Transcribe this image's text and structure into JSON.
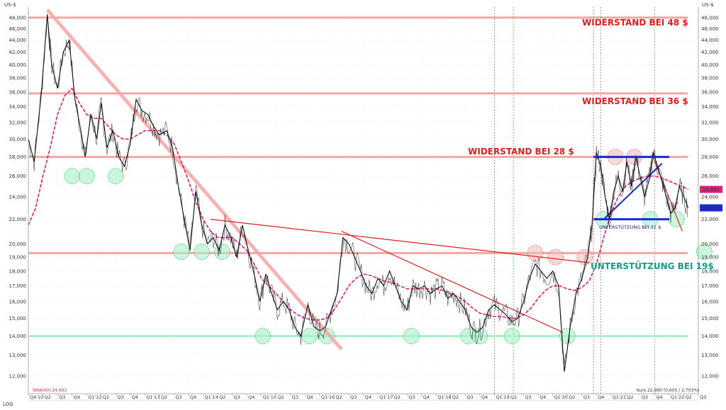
{
  "chart_data": {
    "type": "line",
    "scale": "log",
    "currency_label": "US-$",
    "log_label": "LOG",
    "ylim": [
      11200,
      50000
    ],
    "y_ticks": [
      12000,
      13000,
      14000,
      15000,
      16000,
      17000,
      18000,
      19000,
      20000,
      22000,
      24000,
      26000,
      28000,
      30000,
      32000,
      34000,
      36000,
      38000,
      40000,
      42000,
      44000,
      46000,
      48000
    ],
    "y_tick_labels": [
      "12,000",
      "13,000",
      "14,000",
      "15,000",
      "16,000",
      "17,000",
      "18,000",
      "19,000",
      "20,000",
      "22,000",
      "24,000",
      "26,000",
      "28,000",
      "30,000",
      "32,000",
      "34,000",
      "36,000",
      "38,000",
      "40,000",
      "42,000",
      "44,000",
      "46,000",
      "48,000"
    ],
    "x_tick_labels": [
      "Q4'10",
      "Q2",
      "Q3",
      "Q4",
      "Q1'12",
      "Q2",
      "Q3",
      "Q4",
      "Q1'13",
      "Q2",
      "Q3",
      "Q4",
      "Q1'14",
      "Q2",
      "Q3",
      "Q4",
      "Q1'15",
      "Q2",
      "Q3",
      "Q4",
      "Q1'16",
      "Q2",
      "Q3",
      "Q4",
      "Q1'17",
      "Q2",
      "Q3",
      "Q4",
      "Q1'18",
      "Q2",
      "Q3",
      "Q4",
      "Q1'19",
      "Q2",
      "Q3",
      "Q4",
      "Q1'20",
      "Q2",
      "Q3",
      "Q4",
      "Q1'21",
      "Q2",
      "Q3",
      "Q4",
      "Q1'22",
      "Q2",
      "Q3"
    ],
    "x_range": [
      0,
      46
    ],
    "price_series": {
      "name": "Kurs",
      "points": [
        [
          0,
          30000
        ],
        [
          0.4,
          27500
        ],
        [
          0.9,
          36000
        ],
        [
          1.3,
          48500
        ],
        [
          1.6,
          40000
        ],
        [
          2.0,
          36500
        ],
        [
          2.4,
          42000
        ],
        [
          2.8,
          44000
        ],
        [
          3.2,
          35000
        ],
        [
          3.6,
          31000
        ],
        [
          3.9,
          28000
        ],
        [
          4.3,
          33000
        ],
        [
          4.7,
          30000
        ],
        [
          5.0,
          34500
        ],
        [
          5.4,
          29000
        ],
        [
          5.8,
          31000
        ],
        [
          6.2,
          28000
        ],
        [
          6.6,
          27000
        ],
        [
          7.0,
          29500
        ],
        [
          7.4,
          35000
        ],
        [
          7.8,
          33500
        ],
        [
          8.2,
          33000
        ],
        [
          8.6,
          31500
        ],
        [
          9.0,
          30500
        ],
        [
          9.5,
          31000
        ],
        [
          9.9,
          29000
        ],
        [
          10.3,
          25000
        ],
        [
          10.7,
          22000
        ],
        [
          11.1,
          19500
        ],
        [
          11.5,
          24500
        ],
        [
          11.9,
          21500
        ],
        [
          12.3,
          20000
        ],
        [
          12.7,
          20500
        ],
        [
          13.1,
          19500
        ],
        [
          13.5,
          21500
        ],
        [
          13.9,
          20500
        ],
        [
          14.3,
          19000
        ],
        [
          14.7,
          21500
        ],
        [
          15.1,
          19500
        ],
        [
          15.5,
          17800
        ],
        [
          15.9,
          16000
        ],
        [
          16.3,
          17800
        ],
        [
          16.7,
          16500
        ],
        [
          17.1,
          15500
        ],
        [
          17.5,
          16000
        ],
        [
          17.9,
          15500
        ],
        [
          18.3,
          14500
        ],
        [
          18.7,
          14000
        ],
        [
          19.2,
          15800
        ],
        [
          19.6,
          14500
        ],
        [
          20.0,
          14300
        ],
        [
          20.4,
          14500
        ],
        [
          20.8,
          15500
        ],
        [
          21.2,
          16500
        ],
        [
          21.6,
          20500
        ],
        [
          22.0,
          20000
        ],
        [
          22.4,
          19000
        ],
        [
          22.8,
          18000
        ],
        [
          23.2,
          17000
        ],
        [
          23.6,
          16500
        ],
        [
          24.0,
          17500
        ],
        [
          24.4,
          17000
        ],
        [
          24.8,
          18000
        ],
        [
          25.2,
          17000
        ],
        [
          25.6,
          16000
        ],
        [
          26.0,
          15500
        ],
        [
          26.4,
          17000
        ],
        [
          26.8,
          16800
        ],
        [
          27.2,
          17000
        ],
        [
          27.6,
          16500
        ],
        [
          28.0,
          16800
        ],
        [
          28.4,
          17000
        ],
        [
          28.8,
          16200
        ],
        [
          29.2,
          16500
        ],
        [
          29.6,
          16000
        ],
        [
          30.0,
          15500
        ],
        [
          30.4,
          14500
        ],
        [
          30.8,
          14200
        ],
        [
          31.2,
          14500
        ],
        [
          31.6,
          15500
        ],
        [
          32.0,
          15800
        ],
        [
          32.4,
          15500
        ],
        [
          32.8,
          15200
        ],
        [
          33.2,
          14800
        ],
        [
          33.6,
          15000
        ],
        [
          34.0,
          16000
        ],
        [
          34.4,
          17500
        ],
        [
          34.8,
          18500
        ],
        [
          35.2,
          18000
        ],
        [
          35.6,
          17500
        ],
        [
          36.0,
          18000
        ],
        [
          36.4,
          17000
        ],
        [
          36.8,
          12200
        ],
        [
          37.2,
          14500
        ],
        [
          37.6,
          16500
        ],
        [
          38.0,
          17500
        ],
        [
          38.4,
          19000
        ],
        [
          38.7,
          21500
        ],
        [
          39.0,
          28500
        ],
        [
          39.3,
          27000
        ],
        [
          39.6,
          24000
        ],
        [
          39.9,
          22000
        ],
        [
          40.2,
          24500
        ],
        [
          40.5,
          26000
        ],
        [
          40.8,
          24500
        ],
        [
          41.1,
          27500
        ],
        [
          41.4,
          25000
        ],
        [
          41.7,
          28000
        ],
        [
          42.0,
          26000
        ],
        [
          42.3,
          24000
        ],
        [
          42.6,
          25500
        ],
        [
          42.9,
          28500
        ],
        [
          43.2,
          27000
        ],
        [
          43.5,
          25500
        ],
        [
          43.8,
          24000
        ],
        [
          44.1,
          22500
        ],
        [
          44.4,
          23000
        ],
        [
          44.7,
          25000
        ],
        [
          45.0,
          24000
        ],
        [
          45.3,
          22990
        ]
      ]
    },
    "sma_series": {
      "name": "SMA(40)",
      "points": [
        [
          0,
          21500
        ],
        [
          0.5,
          23000
        ],
        [
          1.0,
          26000
        ],
        [
          1.5,
          29000
        ],
        [
          2.0,
          33000
        ],
        [
          2.5,
          35500
        ],
        [
          3.0,
          36500
        ],
        [
          3.5,
          34500
        ],
        [
          4.0,
          33000
        ],
        [
          4.5,
          32500
        ],
        [
          5.0,
          32500
        ],
        [
          5.5,
          31500
        ],
        [
          6.0,
          30500
        ],
        [
          6.5,
          30000
        ],
        [
          7.0,
          30000
        ],
        [
          7.5,
          30500
        ],
        [
          8.0,
          31000
        ],
        [
          8.5,
          31000
        ],
        [
          9.0,
          31000
        ],
        [
          9.5,
          30500
        ],
        [
          10.0,
          29500
        ],
        [
          10.5,
          27500
        ],
        [
          11.0,
          25500
        ],
        [
          11.5,
          23500
        ],
        [
          12.0,
          22000
        ],
        [
          12.5,
          21000
        ],
        [
          13.0,
          20500
        ],
        [
          13.5,
          20500
        ],
        [
          14.0,
          20500
        ],
        [
          14.5,
          20000
        ],
        [
          15.0,
          19500
        ],
        [
          15.5,
          18500
        ],
        [
          16.0,
          17500
        ],
        [
          16.5,
          17000
        ],
        [
          17.0,
          16500
        ],
        [
          17.5,
          16000
        ],
        [
          18.0,
          15500
        ],
        [
          18.5,
          15200
        ],
        [
          19.0,
          15000
        ],
        [
          19.5,
          14900
        ],
        [
          20.0,
          14900
        ],
        [
          20.5,
          15000
        ],
        [
          21.0,
          15500
        ],
        [
          21.5,
          16200
        ],
        [
          22.0,
          17000
        ],
        [
          22.5,
          17500
        ],
        [
          23.0,
          17800
        ],
        [
          23.5,
          17700
        ],
        [
          24.0,
          17500
        ],
        [
          24.5,
          17300
        ],
        [
          25.0,
          17200
        ],
        [
          25.5,
          17000
        ],
        [
          26.0,
          16800
        ],
        [
          26.5,
          16800
        ],
        [
          27.0,
          16800
        ],
        [
          27.5,
          16800
        ],
        [
          28.0,
          16800
        ],
        [
          28.5,
          16700
        ],
        [
          29.0,
          16500
        ],
        [
          29.5,
          16300
        ],
        [
          30.0,
          16000
        ],
        [
          30.5,
          15600
        ],
        [
          31.0,
          15300
        ],
        [
          31.5,
          15200
        ],
        [
          32.0,
          15100
        ],
        [
          32.5,
          15100
        ],
        [
          33.0,
          15000
        ],
        [
          33.5,
          15000
        ],
        [
          34.0,
          15200
        ],
        [
          34.5,
          15600
        ],
        [
          35.0,
          16200
        ],
        [
          35.5,
          16700
        ],
        [
          36.0,
          17000
        ],
        [
          36.5,
          17000
        ],
        [
          37.0,
          16800
        ],
        [
          37.5,
          16700
        ],
        [
          38.0,
          16900
        ],
        [
          38.5,
          17300
        ],
        [
          39.0,
          18500
        ],
        [
          39.5,
          20500
        ],
        [
          40.0,
          22500
        ],
        [
          40.5,
          24000
        ],
        [
          41.0,
          25000
        ],
        [
          41.5,
          25500
        ],
        [
          42.0,
          25800
        ],
        [
          42.5,
          26000
        ],
        [
          43.0,
          26000
        ],
        [
          43.5,
          25800
        ],
        [
          44.0,
          25500
        ],
        [
          44.5,
          25200
        ],
        [
          45.0,
          24900
        ],
        [
          45.3,
          24692
        ]
      ]
    },
    "horizontal_levels": [
      {
        "value": 48000,
        "color": "#f4a6a6"
      },
      {
        "value": 35800,
        "color": "#f4a6a6"
      },
      {
        "value": 28000,
        "color": "#f4a6a6"
      },
      {
        "value": 19300,
        "color": "#f4a6a6"
      },
      {
        "value": 14000,
        "color": "#a8f0c8"
      }
    ],
    "trend_lines": [
      {
        "from": [
          1.3,
          49500
        ],
        "to": [
          21.5,
          13300
        ],
        "color": "#f4a6a6",
        "role": "thick"
      },
      {
        "from": [
          12.5,
          22000
        ],
        "to": [
          38.5,
          18600
        ],
        "color": "#e02020",
        "role": "thin"
      },
      {
        "from": [
          21.5,
          21000
        ],
        "to": [
          36.7,
          14200
        ],
        "color": "#e02020",
        "role": "thin"
      },
      {
        "from": [
          39.5,
          22000
        ],
        "to": [
          43.5,
          27300
        ],
        "color": "#1a2ad8",
        "role": "blue"
      },
      {
        "from": [
          42.8,
          28300
        ],
        "to": [
          44.9,
          21000
        ],
        "color": "#e02020",
        "role": "thin"
      }
    ],
    "channel_lines": [
      {
        "from": [
          38.8,
          28000
        ],
        "to": [
          44.0,
          28000
        ],
        "color": "#1a2ad8"
      },
      {
        "from": [
          38.8,
          22000
        ],
        "to": [
          44.0,
          22000
        ],
        "color": "#1a2ad8"
      }
    ],
    "vertical_markers": [
      {
        "x": 32.0,
        "color": "#e05050"
      },
      {
        "x": 33.3,
        "color": "#40c040"
      },
      {
        "x": 38.8,
        "color": "#e05050"
      },
      {
        "x": 39.3,
        "color": "#e05050"
      },
      {
        "x": 43.0,
        "color": "#40c040"
      }
    ],
    "support_circles": [
      {
        "x": 3.0,
        "y": 26000
      },
      {
        "x": 4.0,
        "y": 26000
      },
      {
        "x": 6.0,
        "y": 26000
      },
      {
        "x": 10.5,
        "y": 19400
      },
      {
        "x": 11.9,
        "y": 19400
      },
      {
        "x": 13.3,
        "y": 19400
      },
      {
        "x": 16.1,
        "y": 14000
      },
      {
        "x": 19.3,
        "y": 14000
      },
      {
        "x": 20.5,
        "y": 14000
      },
      {
        "x": 26.3,
        "y": 14000
      },
      {
        "x": 30.2,
        "y": 14000
      },
      {
        "x": 31.0,
        "y": 14000
      },
      {
        "x": 33.2,
        "y": 14000
      },
      {
        "x": 37.0,
        "y": 14000
      },
      {
        "x": 39.5,
        "y": 22000
      },
      {
        "x": 42.7,
        "y": 22000
      },
      {
        "x": 44.5,
        "y": 22000
      },
      {
        "x": 46.4,
        "y": 19400
      }
    ],
    "resistance_circles": [
      {
        "x": 34.8,
        "y": 19300
      },
      {
        "x": 36.2,
        "y": 19000
      },
      {
        "x": 38.2,
        "y": 19000
      },
      {
        "x": 40.3,
        "y": 28000
      },
      {
        "x": 41.6,
        "y": 28000
      }
    ],
    "annotations": [
      {
        "text": "WIDERSTAND BEI 48 $",
        "color": "#e02020"
      },
      {
        "text": "WIDERSTAND BEI 36 $",
        "color": "#e02020"
      },
      {
        "text": "WIDERSTAND BEI 28 $",
        "color": "#e02020"
      },
      {
        "text": "UNTERSTÜTZUNG BEI 19$",
        "color": "#1a9a8a"
      },
      {
        "text": "UNTERSTÜTZUNG BEI 22 $",
        "color": "#1a1a80"
      }
    ],
    "right_badges": [
      {
        "text": "24,692",
        "value": 24692,
        "color": "#e0207a"
      },
      {
        "text": "22,990",
        "value": 22990,
        "color": "#1a2ad8"
      }
    ],
    "sma_legend": "SMA(40) 24,692",
    "footer_text": "Kurs 22,990 (0,605 / 2,703%)",
    "grid": true,
    "colors": {
      "price": "#111111",
      "sma": "#e0207a"
    }
  }
}
